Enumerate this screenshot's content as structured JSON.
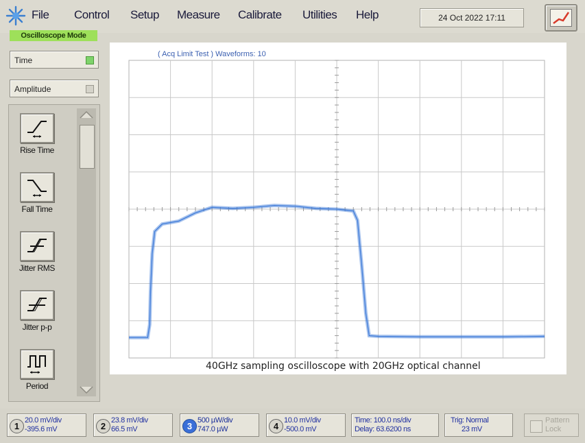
{
  "menu": {
    "items": [
      {
        "label": "File"
      },
      {
        "label": "Control"
      },
      {
        "label": "Setup"
      },
      {
        "label": "Measure"
      },
      {
        "label": "Calibrate"
      },
      {
        "label": "Utilities"
      },
      {
        "label": "Help"
      }
    ],
    "datetime": "24 Oct 2022  17:11"
  },
  "mode_label": "Oscilloscope Mode",
  "left_panel": {
    "time_select": "Time",
    "amplitude_select": "Amplitude",
    "measurements": [
      {
        "label": "Rise Time",
        "icon": "rise-time-icon"
      },
      {
        "label": "Fall Time",
        "icon": "fall-time-icon"
      },
      {
        "label": "Jitter RMS",
        "icon": "jitter-rms-icon"
      },
      {
        "label": "Jitter p-p",
        "icon": "jitter-pp-icon"
      },
      {
        "label": "Period",
        "icon": "period-icon"
      }
    ]
  },
  "plot": {
    "status_text": "( Acq Limit Test )  Waveforms: 10",
    "caption": "40GHz sampling oscilloscope with 20GHz optical channel",
    "trace_color": "#3a78d8",
    "grid_color": "#c8c8c8"
  },
  "bottom_bar": {
    "channels": [
      {
        "num": "1",
        "scale": "20.0 mV/div",
        "offset": "-395.6 mV"
      },
      {
        "num": "2",
        "scale": "23.8 mV/div",
        "offset": "66.5 mV"
      },
      {
        "num": "3",
        "scale": "500 µW/div",
        "offset": "747.0 µW"
      },
      {
        "num": "4",
        "scale": "10.0 mV/div",
        "offset": "-500.0 mV"
      }
    ],
    "time": {
      "scale": "Time: 100.0 ns/div",
      "delay": "Delay: 63.6200 ns"
    },
    "trigger": {
      "mode": "Trig: Normal",
      "level": "23 mV"
    },
    "pattern_lock": {
      "line1": "Pattern",
      "line2": "Lock"
    }
  }
}
